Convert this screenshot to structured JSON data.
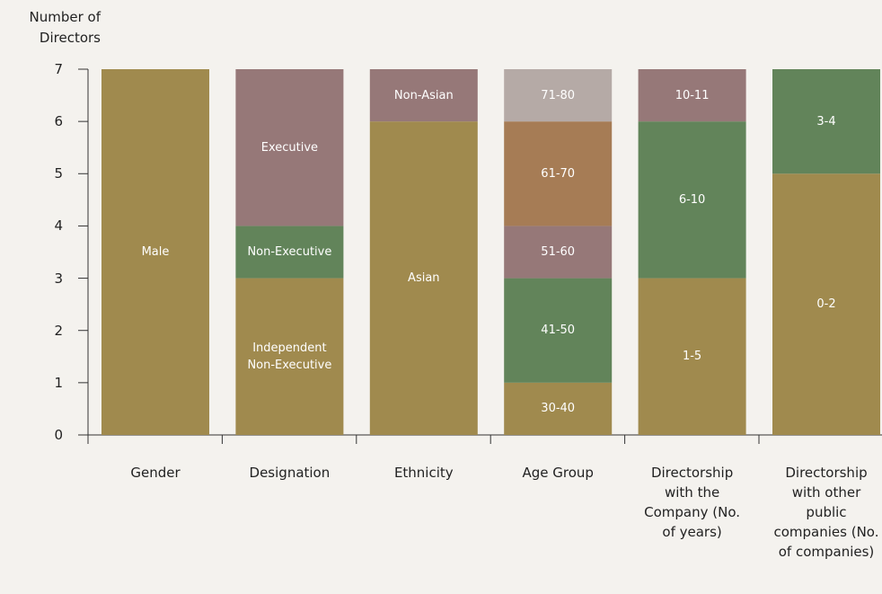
{
  "chart_data": {
    "type": "stacked-bar",
    "y_label": "Number of Directors",
    "ylim": [
      0,
      7
    ],
    "yticks": [
      0,
      1,
      2,
      3,
      4,
      5,
      6,
      7
    ],
    "bars": [
      {
        "category": "Gender",
        "segments": [
          {
            "name": "Male",
            "value": 7,
            "color": "#a08a4e"
          }
        ]
      },
      {
        "category": "Designation",
        "segments": [
          {
            "name": "Independent Non-Executive",
            "value": 3,
            "color": "#a08a4e"
          },
          {
            "name": "Non-Executive",
            "value": 1,
            "color": "#62845a"
          },
          {
            "name": "Executive",
            "value": 3,
            "color": "#967878"
          }
        ]
      },
      {
        "category": "Ethnicity",
        "segments": [
          {
            "name": "Asian",
            "value": 6,
            "color": "#a08a4e"
          },
          {
            "name": "Non-Asian",
            "value": 1,
            "color": "#967878"
          }
        ]
      },
      {
        "category": "Age Group",
        "segments": [
          {
            "name": "30-40",
            "value": 1,
            "color": "#a08a4e"
          },
          {
            "name": "41-50",
            "value": 2,
            "color": "#62845a"
          },
          {
            "name": "51-60",
            "value": 1,
            "color": "#967878"
          },
          {
            "name": "61-70",
            "value": 2,
            "color": "#a67c55"
          },
          {
            "name": "71-80",
            "value": 1,
            "color": "#b5aaa6"
          }
        ]
      },
      {
        "category": "Directorship with the Company (No. of years)",
        "segments": [
          {
            "name": "1-5",
            "value": 3,
            "color": "#a08a4e"
          },
          {
            "name": "6-10",
            "value": 3,
            "color": "#62845a"
          },
          {
            "name": "10-11",
            "value": 1,
            "color": "#967878"
          }
        ]
      },
      {
        "category": "Directorship with other public companies (No. of companies)",
        "segments": [
          {
            "name": "0-2",
            "value": 5,
            "color": "#a08a4e"
          },
          {
            "name": "3-4",
            "value": 2,
            "color": "#62845a"
          }
        ]
      }
    ]
  }
}
